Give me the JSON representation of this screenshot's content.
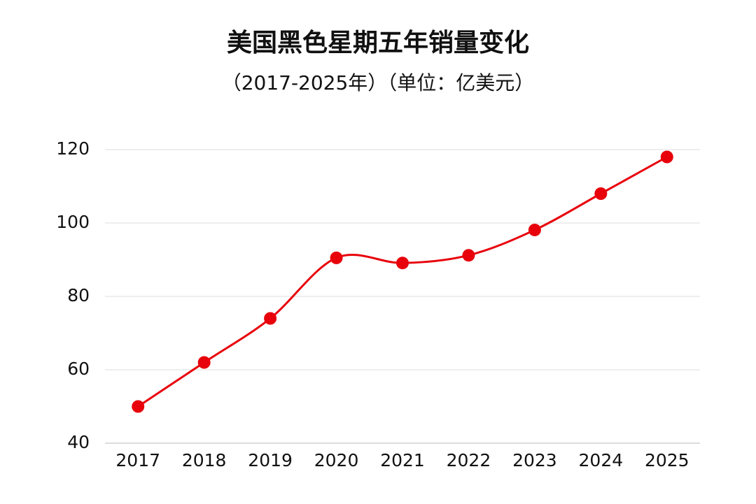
{
  "chart_data": {
    "type": "line",
    "title": "美国黑色星期五年销量变化",
    "subtitle": "（2017-2025年）（单位：亿美元）",
    "categories": [
      "2017",
      "2018",
      "2019",
      "2020",
      "2021",
      "2022",
      "2023",
      "2024",
      "2025"
    ],
    "values": [
      50,
      62,
      74,
      90.5,
      89.1,
      91.2,
      98.1,
      108,
      118
    ],
    "color": "#e8000b",
    "smooth": true,
    "ylim": [
      40,
      120
    ],
    "yticks": [
      40,
      60,
      80,
      100,
      120
    ],
    "grid": true
  }
}
